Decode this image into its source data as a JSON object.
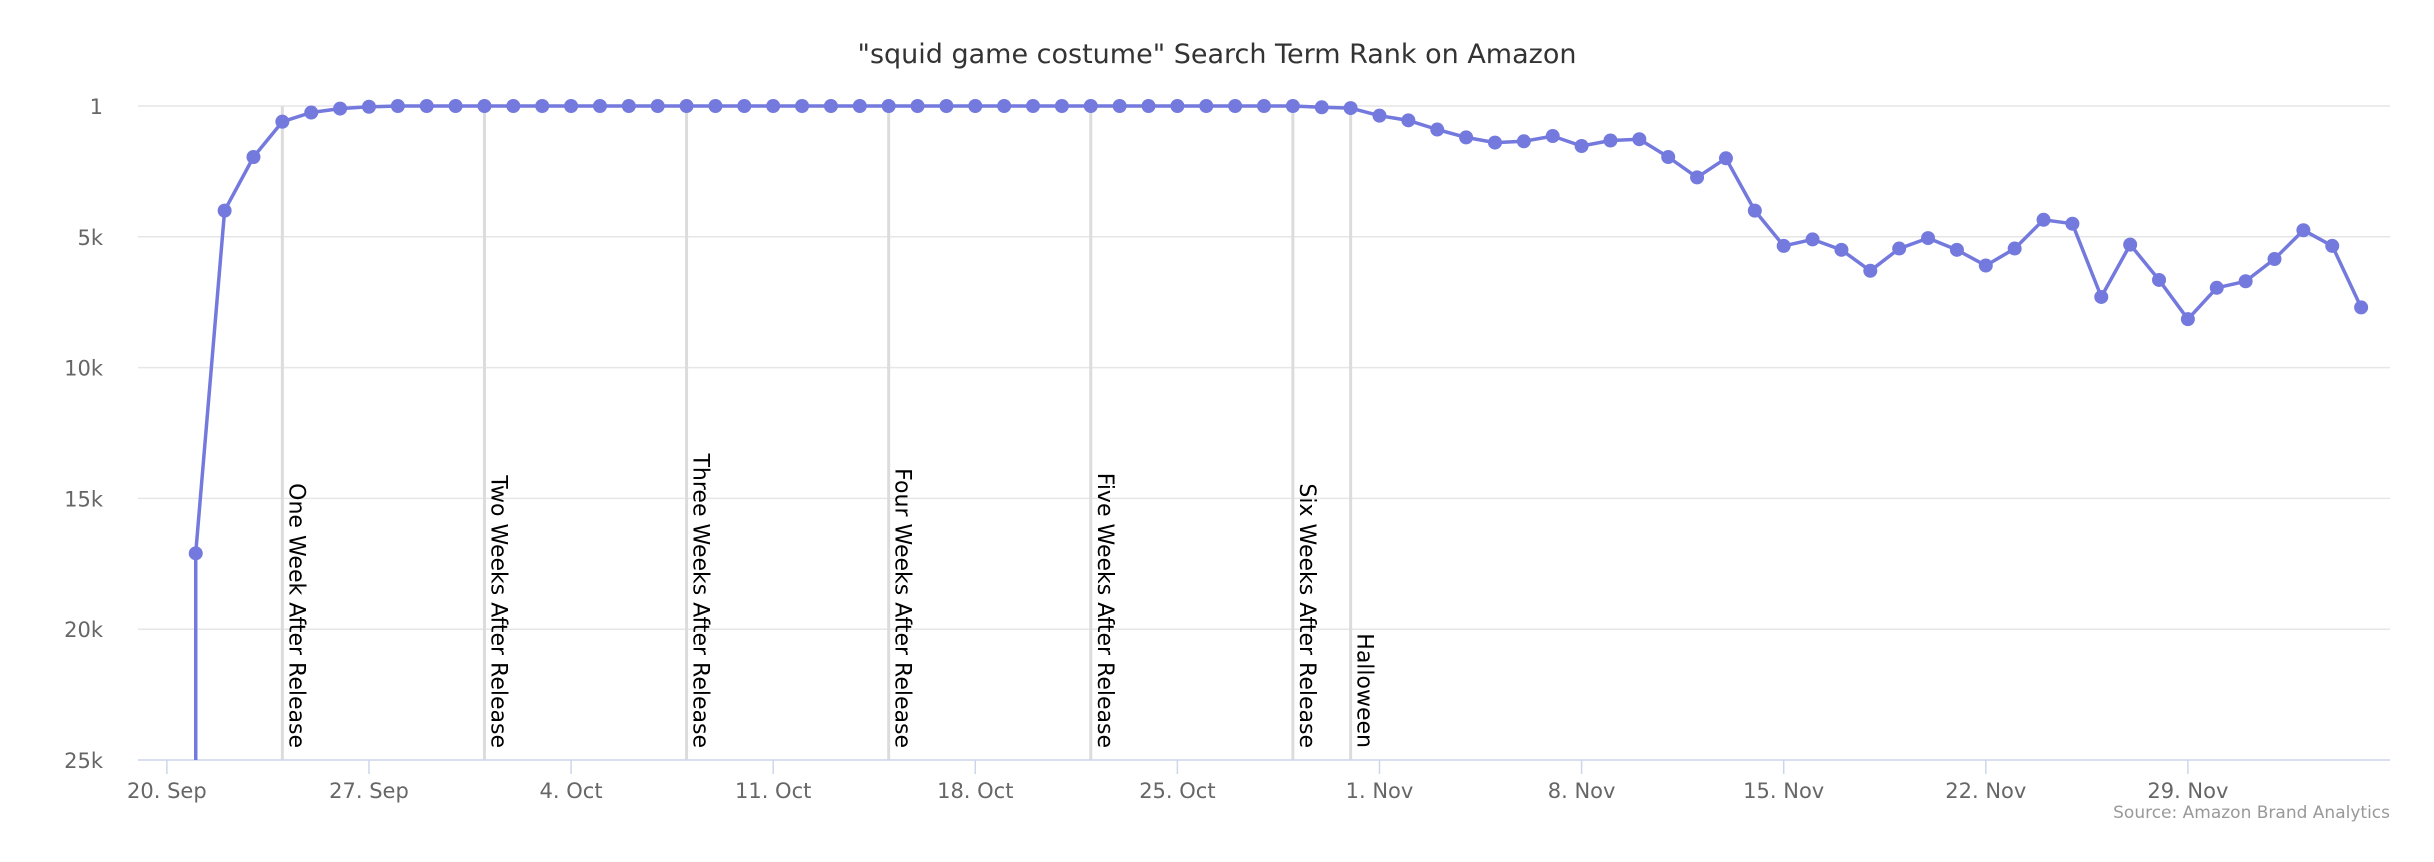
{
  "chart_data": {
    "type": "line",
    "title": "\"squid game costume\" Search Term Rank on Amazon",
    "credit": "Source: Amazon Brand Analytics",
    "xlabel": "",
    "ylabel": "",
    "y_reversed": true,
    "ylim": [
      1,
      25000
    ],
    "xlim": [
      "2021-09-19",
      "2021-12-06"
    ],
    "grid": true,
    "legend": "none",
    "y_ticks": [
      {
        "value": 1,
        "label": "1"
      },
      {
        "value": 5000,
        "label": "5k"
      },
      {
        "value": 10000,
        "label": "10k"
      },
      {
        "value": 15000,
        "label": "15k"
      },
      {
        "value": 20000,
        "label": "20k"
      },
      {
        "value": 25000,
        "label": "25k"
      }
    ],
    "x_ticks": [
      {
        "date": "2021-09-20",
        "label": "20. Sep"
      },
      {
        "date": "2021-09-27",
        "label": "27. Sep"
      },
      {
        "date": "2021-10-04",
        "label": "4. Oct"
      },
      {
        "date": "2021-10-11",
        "label": "11. Oct"
      },
      {
        "date": "2021-10-18",
        "label": "18. Oct"
      },
      {
        "date": "2021-10-25",
        "label": "25. Oct"
      },
      {
        "date": "2021-11-01",
        "label": "1. Nov"
      },
      {
        "date": "2021-11-08",
        "label": "8. Nov"
      },
      {
        "date": "2021-11-15",
        "label": "15. Nov"
      },
      {
        "date": "2021-11-22",
        "label": "22. Nov"
      },
      {
        "date": "2021-11-29",
        "label": "29. Nov"
      }
    ],
    "plot_lines": [
      {
        "date": "2021-09-24",
        "label": "One Week After Release"
      },
      {
        "date": "2021-10-01",
        "label": "Two Weeks After Release"
      },
      {
        "date": "2021-10-08",
        "label": "Three Weeks After Release"
      },
      {
        "date": "2021-10-15",
        "label": "Four Weeks After Release"
      },
      {
        "date": "2021-10-22",
        "label": "Five Weeks After Release"
      },
      {
        "date": "2021-10-29",
        "label": "Six Weeks After Release"
      },
      {
        "date": "2021-10-31",
        "label": "Halloween"
      }
    ],
    "series": [
      {
        "color": "#7479dd",
        "lead_in": {
          "date": "2021-09-21",
          "value": 25000
        },
        "points": [
          {
            "date": "2021-09-21",
            "value": 17100
          },
          {
            "date": "2021-09-22",
            "value": 4000
          },
          {
            "date": "2021-09-23",
            "value": 1950
          },
          {
            "date": "2021-09-24",
            "value": 600
          },
          {
            "date": "2021-09-25",
            "value": 250
          },
          {
            "date": "2021-09-26",
            "value": 100
          },
          {
            "date": "2021-09-27",
            "value": 30
          },
          {
            "date": "2021-09-28",
            "value": 1
          },
          {
            "date": "2021-09-29",
            "value": 1
          },
          {
            "date": "2021-09-30",
            "value": 1
          },
          {
            "date": "2021-10-01",
            "value": 1
          },
          {
            "date": "2021-10-02",
            "value": 1
          },
          {
            "date": "2021-10-03",
            "value": 1
          },
          {
            "date": "2021-10-04",
            "value": 1
          },
          {
            "date": "2021-10-05",
            "value": 1
          },
          {
            "date": "2021-10-06",
            "value": 1
          },
          {
            "date": "2021-10-07",
            "value": 1
          },
          {
            "date": "2021-10-08",
            "value": 1
          },
          {
            "date": "2021-10-09",
            "value": 1
          },
          {
            "date": "2021-10-10",
            "value": 1
          },
          {
            "date": "2021-10-11",
            "value": 1
          },
          {
            "date": "2021-10-12",
            "value": 1
          },
          {
            "date": "2021-10-13",
            "value": 1
          },
          {
            "date": "2021-10-14",
            "value": 1
          },
          {
            "date": "2021-10-15",
            "value": 1
          },
          {
            "date": "2021-10-16",
            "value": 1
          },
          {
            "date": "2021-10-17",
            "value": 1
          },
          {
            "date": "2021-10-18",
            "value": 1
          },
          {
            "date": "2021-10-19",
            "value": 1
          },
          {
            "date": "2021-10-20",
            "value": 1
          },
          {
            "date": "2021-10-21",
            "value": 1
          },
          {
            "date": "2021-10-22",
            "value": 1
          },
          {
            "date": "2021-10-23",
            "value": 1
          },
          {
            "date": "2021-10-24",
            "value": 1
          },
          {
            "date": "2021-10-25",
            "value": 1
          },
          {
            "date": "2021-10-26",
            "value": 1
          },
          {
            "date": "2021-10-27",
            "value": 1
          },
          {
            "date": "2021-10-28",
            "value": 1
          },
          {
            "date": "2021-10-29",
            "value": 1
          },
          {
            "date": "2021-10-30",
            "value": 50
          },
          {
            "date": "2021-10-31",
            "value": 80
          },
          {
            "date": "2021-11-01",
            "value": 370
          },
          {
            "date": "2021-11-02",
            "value": 550
          },
          {
            "date": "2021-11-03",
            "value": 900
          },
          {
            "date": "2021-11-04",
            "value": 1200
          },
          {
            "date": "2021-11-05",
            "value": 1400
          },
          {
            "date": "2021-11-06",
            "value": 1350
          },
          {
            "date": "2021-11-07",
            "value": 1150
          },
          {
            "date": "2021-11-08",
            "value": 1530
          },
          {
            "date": "2021-11-09",
            "value": 1320
          },
          {
            "date": "2021-11-10",
            "value": 1270
          },
          {
            "date": "2021-11-11",
            "value": 1950
          },
          {
            "date": "2021-11-12",
            "value": 2730
          },
          {
            "date": "2021-11-13",
            "value": 2000
          },
          {
            "date": "2021-11-14",
            "value": 4000
          },
          {
            "date": "2021-11-15",
            "value": 5350
          },
          {
            "date": "2021-11-16",
            "value": 5100
          },
          {
            "date": "2021-11-17",
            "value": 5500
          },
          {
            "date": "2021-11-18",
            "value": 6300
          },
          {
            "date": "2021-11-19",
            "value": 5450
          },
          {
            "date": "2021-11-20",
            "value": 5050
          },
          {
            "date": "2021-11-21",
            "value": 5500
          },
          {
            "date": "2021-11-22",
            "value": 6100
          },
          {
            "date": "2021-11-23",
            "value": 5450
          },
          {
            "date": "2021-11-24",
            "value": 4350
          },
          {
            "date": "2021-11-25",
            "value": 4500
          },
          {
            "date": "2021-11-26",
            "value": 7300
          },
          {
            "date": "2021-11-27",
            "value": 5300
          },
          {
            "date": "2021-11-28",
            "value": 6650
          },
          {
            "date": "2021-11-29",
            "value": 8150
          },
          {
            "date": "2021-11-30",
            "value": 6950
          },
          {
            "date": "2021-12-01",
            "value": 6700
          },
          {
            "date": "2021-12-02",
            "value": 5850
          },
          {
            "date": "2021-12-03",
            "value": 4750
          },
          {
            "date": "2021-12-04",
            "value": 5350
          },
          {
            "date": "2021-12-05",
            "value": 7700
          }
        ]
      }
    ]
  }
}
